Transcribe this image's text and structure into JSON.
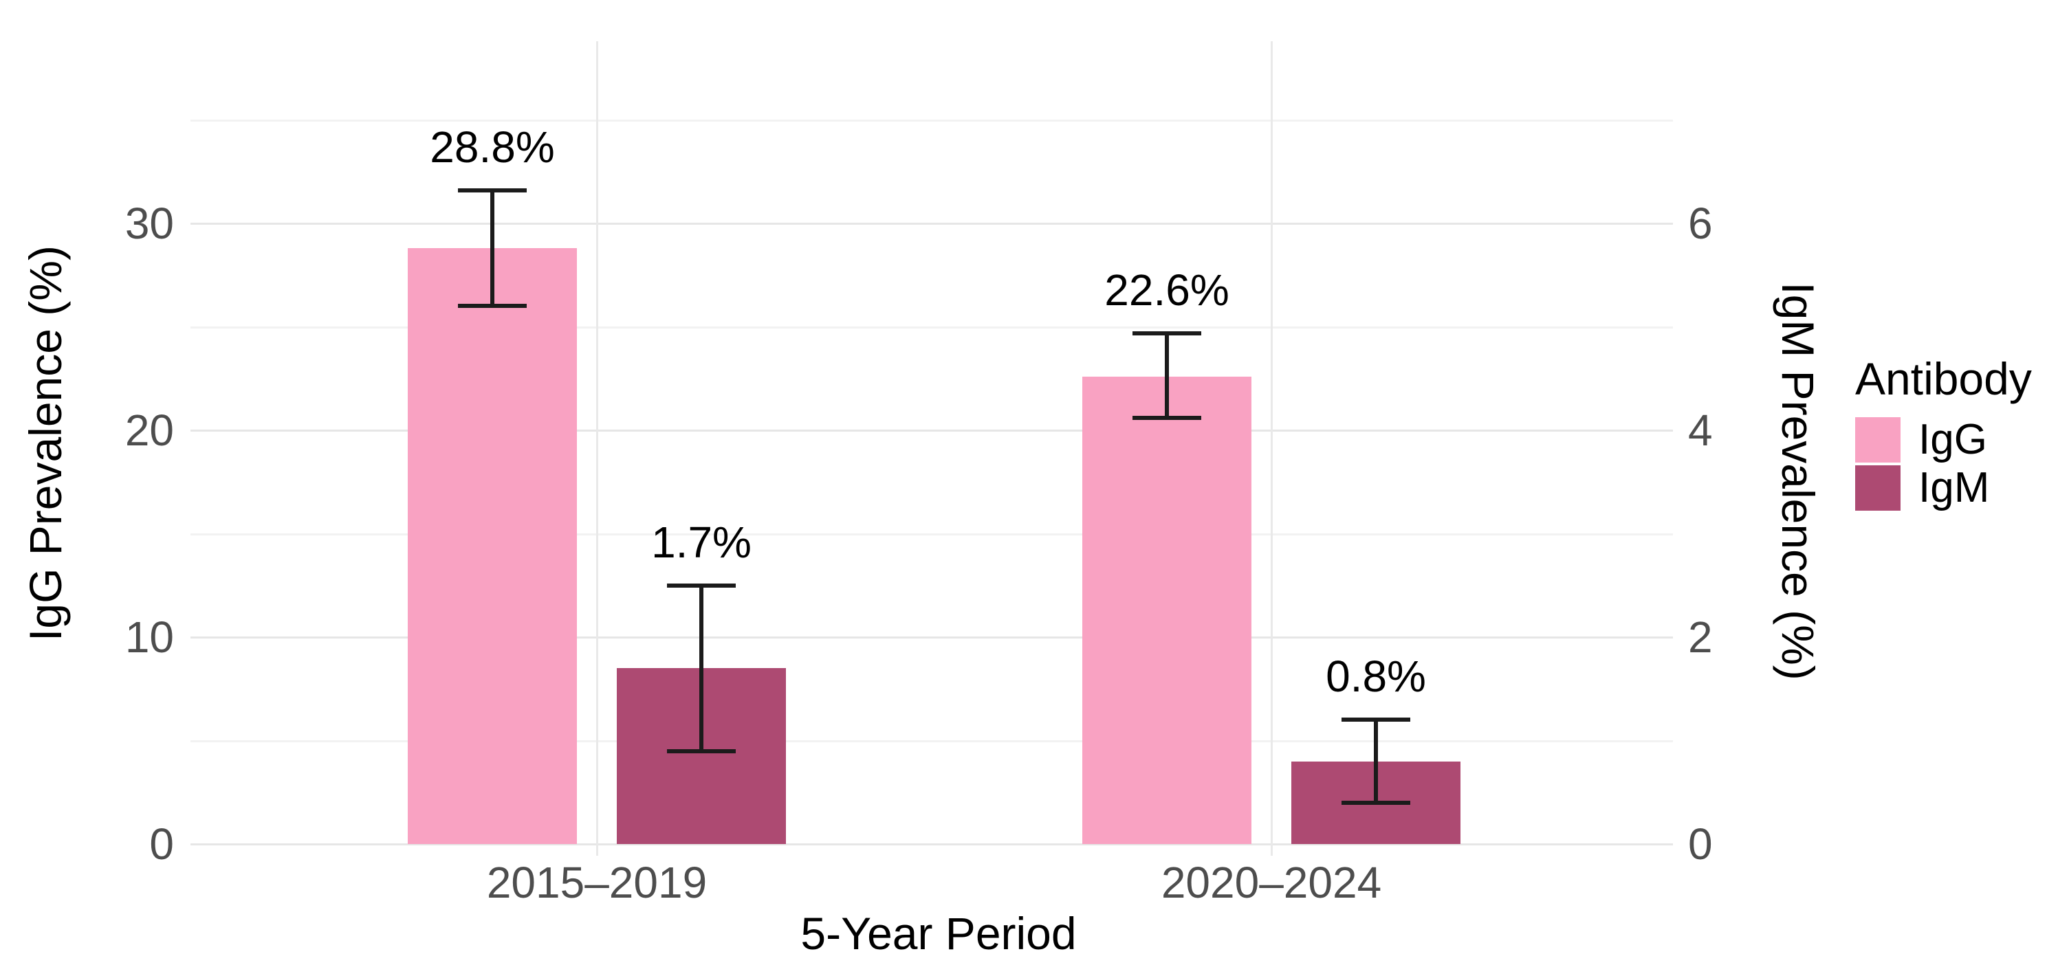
{
  "chart_data": {
    "type": "bar",
    "title": "",
    "xlabel": "5-Year Period",
    "categories": [
      "2015–2019",
      "2020–2024"
    ],
    "left_axis": {
      "label": "IgG Prevalence (%)",
      "ticks": [
        0,
        10,
        20,
        30
      ],
      "minor_gridlines": [
        5,
        15,
        25,
        35
      ],
      "range": [
        0,
        37
      ]
    },
    "right_axis": {
      "label": "IgM Prevalence (%)",
      "ticks": [
        0,
        2,
        4,
        6
      ],
      "scale_ratio_left_per_right": 5
    },
    "legend": {
      "title": "Antibody",
      "position": "right",
      "entries": [
        {
          "label": "IgG",
          "color": "#f9a2c2"
        },
        {
          "label": "IgM",
          "color": "#ad4a72"
        }
      ]
    },
    "grid": "on",
    "series": [
      {
        "name": "IgG",
        "axis": "left",
        "color": "#f9a2c2",
        "values": [
          28.8,
          22.6
        ],
        "ci_low": [
          26.0,
          20.6
        ],
        "ci_high": [
          31.6,
          24.7
        ],
        "value_labels": [
          "28.8%",
          "22.6%"
        ]
      },
      {
        "name": "IgM",
        "axis": "right",
        "color": "#ad4a72",
        "values": [
          1.7,
          0.8
        ],
        "ci_low": [
          0.9,
          0.4
        ],
        "ci_high": [
          2.5,
          1.2
        ],
        "value_labels": [
          "1.7%",
          "0.8%"
        ]
      }
    ],
    "error_bar_color": "#1b1b1b"
  }
}
